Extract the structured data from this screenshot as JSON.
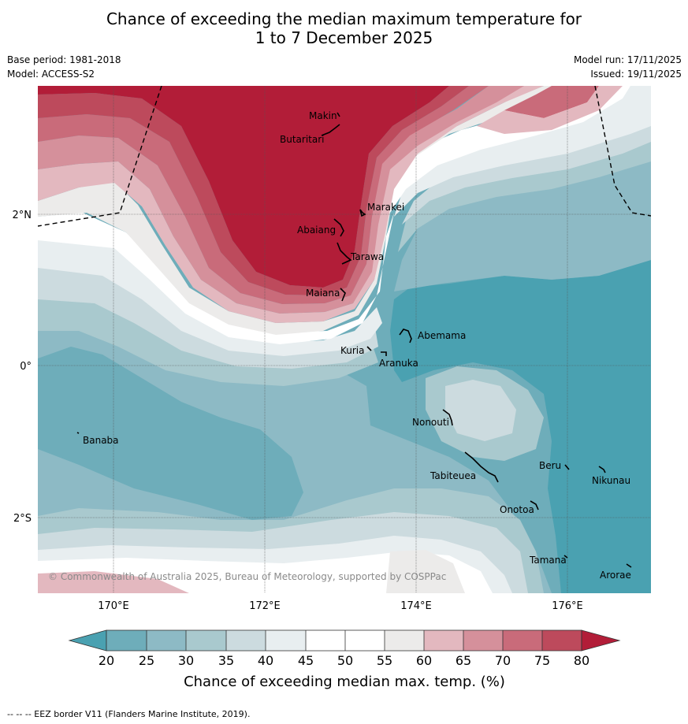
{
  "title": {
    "line1": "Chance of exceeding the median maximum temperature for",
    "line2": "1 to 7 December 2025"
  },
  "meta": {
    "base_period": "Base period: 1981-2018",
    "model": "Model: ACCESS-S2",
    "model_run": "Model run: 17/11/2025",
    "issued": "Issued: 19/11/2025"
  },
  "axes": {
    "x_ticks": [
      "170°E",
      "172°E",
      "174°E",
      "176°E"
    ],
    "y_ticks": [
      "2°N",
      "0°",
      "2°S"
    ]
  },
  "places": {
    "makin": "Makin",
    "butaritari": "Butaritari",
    "marakei": "Marakei",
    "abaiang": "Abaiang",
    "tarawa": "Tarawa",
    "maiana": "Maiana",
    "abemama": "Abemama",
    "kuria": "Kuria",
    "aranuka": "Aranuka",
    "nonouti": "Nonouti",
    "banaba": "Banaba",
    "beru": "Beru",
    "nikunau": "Nikunau",
    "tabiteuea": "Tabiteuea",
    "onotoa": "Onotoa",
    "tamana": "Tamana",
    "arorae": "Arorae"
  },
  "copyright": "© Commonwealth of Australia 2025, Bureau of Meteorology, supported by COSPPac",
  "colorbar": {
    "ticks": [
      "20",
      "25",
      "30",
      "35",
      "40",
      "45",
      "50",
      "55",
      "60",
      "65",
      "70",
      "75",
      "80"
    ],
    "label": "Chance of exceeding median max. temp. (%)",
    "colors": {
      "under": "#4aa1b1",
      "c20": "#6eadba",
      "c25": "#8dbac5",
      "c30": "#a9c9ce",
      "c35": "#ccdbdf",
      "c40": "#e8eef0",
      "c45": "#ffffff",
      "c50": "#ffffff",
      "c55": "#ecebea",
      "c60": "#e3b8bf",
      "c65": "#d5909b",
      "c70": "#c96b7a",
      "c75": "#bd4a5c",
      "over": "#b21d38"
    }
  },
  "footnote": "--  --  -- EEZ border V11 (Flanders Marine Institute, 2019)."
}
